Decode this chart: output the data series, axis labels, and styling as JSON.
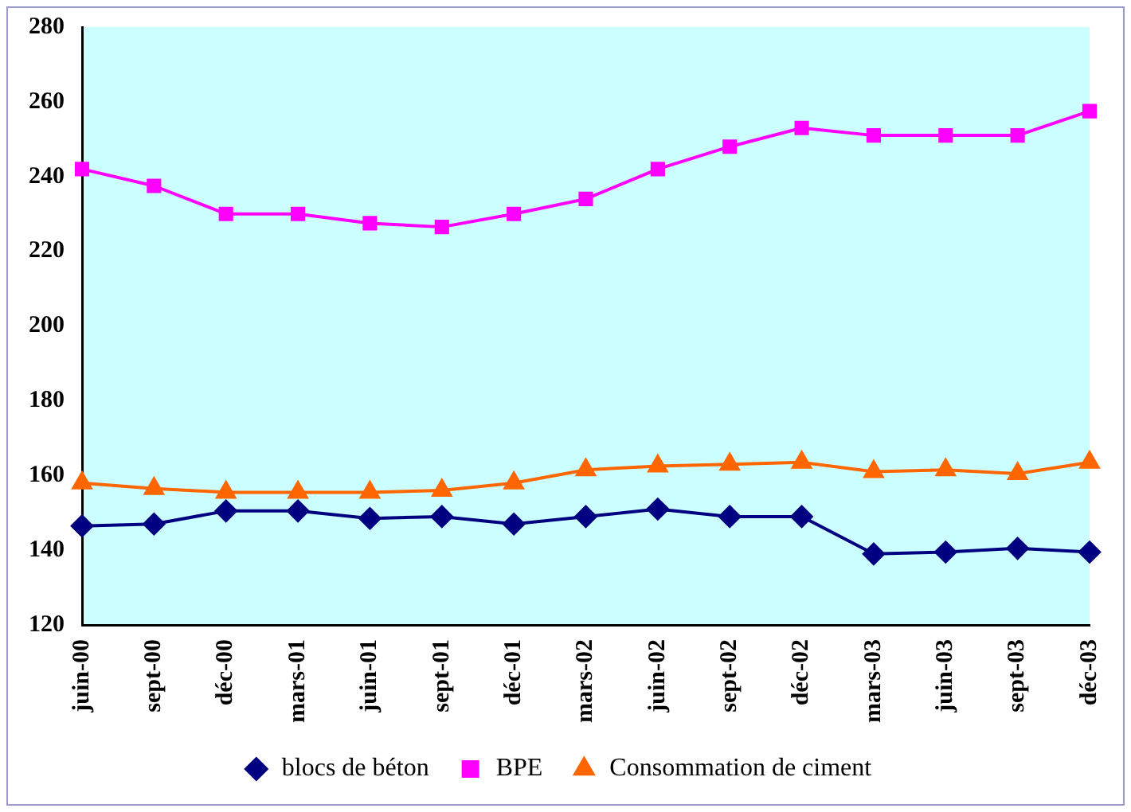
{
  "chart_data": {
    "type": "line",
    "categories": [
      "juin-00",
      "sept-00",
      "déc-00",
      "mars-01",
      "juin-01",
      "sept-01",
      "déc-01",
      "mars-02",
      "juin-02",
      "sept-02",
      "déc-02",
      "mars-03",
      "juin-03",
      "sept-03",
      "déc-03"
    ],
    "series": [
      {
        "name": "blocs de béton",
        "color": "#000080",
        "marker": "diamond",
        "values": [
          146.5,
          147,
          150.5,
          150.5,
          148.5,
          149,
          147,
          149,
          151,
          149,
          149,
          139,
          139.5,
          140.5,
          139.5
        ]
      },
      {
        "name": "BPE",
        "color": "#ff00ff",
        "marker": "square",
        "values": [
          242,
          237.5,
          230,
          230,
          227.5,
          226.5,
          230,
          234,
          242,
          248,
          253,
          251,
          251,
          251,
          257.5
        ]
      },
      {
        "name": "Consommation de ciment",
        "color": "#ff6600",
        "marker": "triangle",
        "values": [
          158,
          156.5,
          155.5,
          155.5,
          155.5,
          156,
          158,
          161.5,
          162.5,
          163,
          163.5,
          161,
          161.5,
          160.5,
          163.5
        ]
      }
    ],
    "ylim": [
      120,
      280
    ],
    "yticks": [
      120,
      140,
      160,
      180,
      200,
      220,
      240,
      260,
      280
    ],
    "grid": false,
    "legend": "bottom",
    "line_style": "solid"
  }
}
